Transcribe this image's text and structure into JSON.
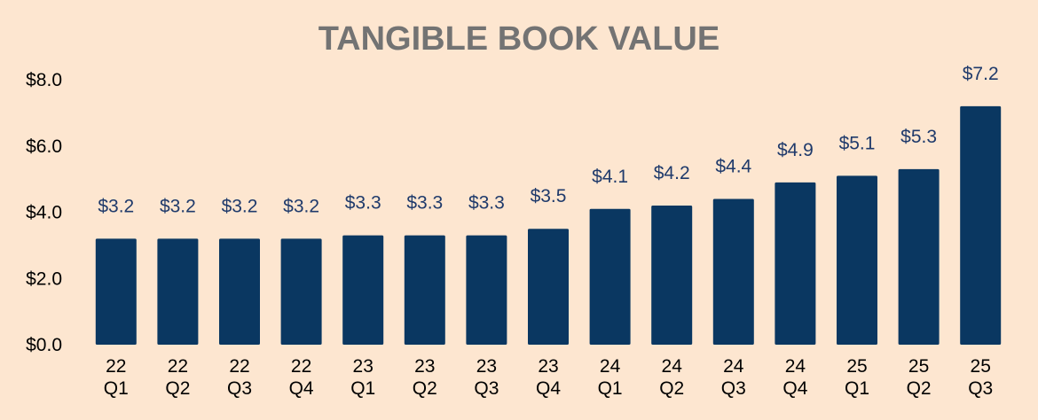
{
  "chart_data": {
    "type": "bar",
    "title": "TANGIBLE BOOK VALUE",
    "xlabel": "",
    "ylabel": "",
    "ylim": [
      0,
      8
    ],
    "yticks": [
      "$0.0",
      "$2.0",
      "$4.0",
      "$6.0",
      "$8.0"
    ],
    "ytick_values": [
      0,
      2,
      4,
      6,
      8
    ],
    "categories": [
      [
        "22",
        "Q1"
      ],
      [
        "22",
        "Q2"
      ],
      [
        "22",
        "Q3"
      ],
      [
        "22",
        "Q4"
      ],
      [
        "23",
        "Q1"
      ],
      [
        "23",
        "Q2"
      ],
      [
        "23",
        "Q3"
      ],
      [
        "23",
        "Q4"
      ],
      [
        "24",
        "Q1"
      ],
      [
        "24",
        "Q2"
      ],
      [
        "24",
        "Q3"
      ],
      [
        "24",
        "Q4"
      ],
      [
        "25",
        "Q1"
      ],
      [
        "25",
        "Q2"
      ],
      [
        "25",
        "Q3"
      ]
    ],
    "values": [
      3.2,
      3.2,
      3.2,
      3.2,
      3.3,
      3.3,
      3.3,
      3.5,
      4.1,
      4.2,
      4.4,
      4.9,
      5.1,
      5.3,
      7.2
    ],
    "data_labels": [
      "$3.2",
      "$3.2",
      "$3.2",
      "$3.2",
      "$3.3",
      "$3.3",
      "$3.3",
      "$3.5",
      "$4.1",
      "$4.2",
      "$4.4",
      "$4.9",
      "$5.1",
      "$5.3",
      "$7.2"
    ],
    "grid": false,
    "legend": "none",
    "colors": {
      "background": "#FDE6D0",
      "bar": "#0A3761",
      "data_label": "#1F3A6B",
      "title": "#737373"
    }
  }
}
